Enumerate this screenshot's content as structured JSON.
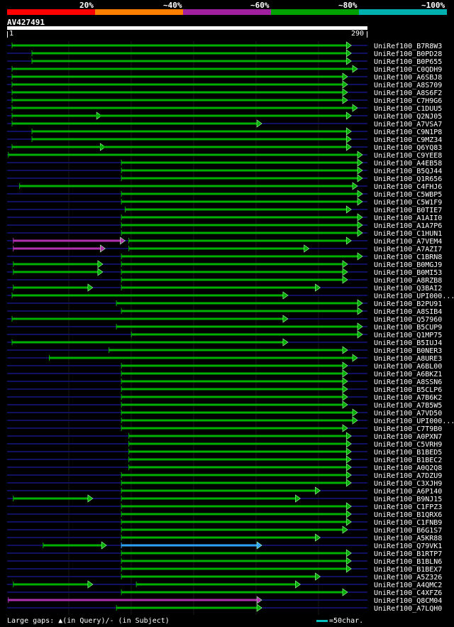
{
  "query": {
    "id": "AV427491",
    "start_label": "1",
    "end_label": "290"
  },
  "legend": {
    "labels": [
      "20%",
      "~40%",
      "~60%",
      "~80%",
      "~100%"
    ],
    "colors": [
      "#ff0000",
      "#ff7f00",
      "#a020a0",
      "#00a000",
      "#00b0b0"
    ]
  },
  "colors": {
    "hit": "#00a000",
    "hit_dark": "#006000",
    "low": "#b030b0",
    "best": "#30a0ff",
    "background_line": "#101060"
  },
  "hits": [
    {
      "name": "UniRef100_B7R8W3",
      "color": "green",
      "segs": [
        [
          4,
          277
        ]
      ]
    },
    {
      "name": "UniRef100_B0PD28",
      "color": "green",
      "segs": [
        [
          20,
          277
        ]
      ]
    },
    {
      "name": "UniRef100_B0P655",
      "color": "green",
      "segs": [
        [
          20,
          277
        ]
      ]
    },
    {
      "name": "UniRef100_C0QDH9",
      "color": "green",
      "segs": [
        [
          4,
          282
        ]
      ]
    },
    {
      "name": "UniRef100_A6SBJ8",
      "color": "green",
      "segs": [
        [
          4,
          274
        ]
      ]
    },
    {
      "name": "UniRef100_A8S709",
      "color": "green",
      "segs": [
        [
          4,
          274
        ]
      ]
    },
    {
      "name": "UniRef100_A8S6F2",
      "color": "green",
      "segs": [
        [
          4,
          274
        ]
      ]
    },
    {
      "name": "UniRef100_C7H9G6",
      "color": "green",
      "segs": [
        [
          4,
          274
        ]
      ]
    },
    {
      "name": "UniRef100_C1DUU5",
      "color": "green",
      "segs": [
        [
          4,
          282
        ]
      ]
    },
    {
      "name": "UniRef100_Q2NJ05",
      "color": "green",
      "segs": [
        [
          4,
          76
        ],
        [
          4,
          277
        ]
      ]
    },
    {
      "name": "UniRef100_A7VSA7",
      "color": "green",
      "segs": [
        [
          4,
          205
        ]
      ]
    },
    {
      "name": "UniRef100_C9N1P8",
      "color": "green",
      "segs": [
        [
          20,
          277
        ]
      ]
    },
    {
      "name": "UniRef100_C9MZ34",
      "color": "green",
      "segs": [
        [
          20,
          277
        ]
      ]
    },
    {
      "name": "UniRef100_Q6YQ83",
      "color": "green",
      "segs": [
        [
          4,
          79
        ],
        [
          4,
          277
        ]
      ]
    },
    {
      "name": "UniRef100_C9YEE8",
      "color": "green",
      "segs": [
        [
          1,
          286
        ]
      ]
    },
    {
      "name": "UniRef100_A4EB58",
      "color": "green",
      "segs": [
        [
          92,
          286
        ]
      ]
    },
    {
      "name": "UniRef100_B5QJ44",
      "color": "green",
      "segs": [
        [
          92,
          286
        ]
      ]
    },
    {
      "name": "UniRef100_Q1R656",
      "color": "green",
      "segs": [
        [
          92,
          286
        ]
      ]
    },
    {
      "name": "UniRef100_C4FHJ6",
      "color": "green",
      "segs": [
        [
          10,
          282
        ]
      ]
    },
    {
      "name": "UniRef100_C5WBP5",
      "color": "green",
      "segs": [
        [
          92,
          286
        ]
      ]
    },
    {
      "name": "UniRef100_C5W1F9",
      "color": "green",
      "segs": [
        [
          92,
          286
        ]
      ]
    },
    {
      "name": "UniRef100_B0TIE7",
      "color": "green",
      "segs": [
        [
          95,
          277
        ]
      ]
    },
    {
      "name": "UniRef100_A1AII0",
      "color": "green",
      "segs": [
        [
          92,
          286
        ]
      ]
    },
    {
      "name": "UniRef100_A1A7P6",
      "color": "green",
      "segs": [
        [
          92,
          286
        ]
      ]
    },
    {
      "name": "UniRef100_C1HUN1",
      "color": "green",
      "segs": [
        [
          92,
          286
        ]
      ]
    },
    {
      "name": "UniRef100_A7VEM4",
      "color": "mix",
      "segs": [
        [
          5,
          95
        ],
        [
          98,
          277
        ]
      ]
    },
    {
      "name": "UniRef100_A7AZI7",
      "color": "mix2",
      "segs": [
        [
          5,
          79
        ],
        [
          98,
          243
        ]
      ]
    },
    {
      "name": "UniRef100_C1BRN8",
      "color": "green",
      "segs": [
        [
          92,
          286
        ]
      ]
    },
    {
      "name": "UniRef100_B0MGJ9",
      "color": "green",
      "segs": [
        [
          5,
          77
        ],
        [
          92,
          274
        ]
      ]
    },
    {
      "name": "UniRef100_B0MI53",
      "color": "green",
      "segs": [
        [
          5,
          77
        ],
        [
          92,
          274
        ]
      ]
    },
    {
      "name": "UniRef100_A8RZB8",
      "color": "green",
      "segs": [
        [
          92,
          274
        ]
      ]
    },
    {
      "name": "UniRef100_Q3BAI2",
      "color": "green",
      "segs": [
        [
          5,
          69
        ],
        [
          92,
          252
        ]
      ]
    },
    {
      "name": "UniRef100_UPI000...",
      "color": "green",
      "segs": [
        [
          4,
          226
        ]
      ]
    },
    {
      "name": "UniRef100_B2PU91",
      "color": "green",
      "segs": [
        [
          88,
          286
        ]
      ]
    },
    {
      "name": "UniRef100_A8SIB4",
      "color": "green",
      "segs": [
        [
          92,
          286
        ]
      ]
    },
    {
      "name": "UniRef100_Q57960",
      "color": "green",
      "segs": [
        [
          4,
          226
        ]
      ]
    },
    {
      "name": "UniRef100_B5CUP9",
      "color": "green",
      "segs": [
        [
          88,
          286
        ]
      ]
    },
    {
      "name": "UniRef100_Q1MP75",
      "color": "green",
      "segs": [
        [
          100,
          286
        ]
      ]
    },
    {
      "name": "UniRef100_B5IUJ4",
      "color": "green",
      "segs": [
        [
          4,
          226
        ]
      ]
    },
    {
      "name": "UniRef100_B0NER3",
      "color": "green",
      "segs": [
        [
          82,
          274
        ]
      ]
    },
    {
      "name": "UniRef100_A8URE3",
      "color": "green",
      "segs": [
        [
          34,
          282
        ]
      ]
    },
    {
      "name": "UniRef100_A6BL00",
      "color": "green",
      "segs": [
        [
          92,
          274
        ]
      ]
    },
    {
      "name": "UniRef100_A6BKZ1",
      "color": "green",
      "segs": [
        [
          92,
          274
        ]
      ]
    },
    {
      "name": "UniRef100_A8SSN6",
      "color": "green",
      "segs": [
        [
          92,
          274
        ]
      ]
    },
    {
      "name": "UniRef100_B5CLP6",
      "color": "green",
      "segs": [
        [
          92,
          274
        ]
      ]
    },
    {
      "name": "UniRef100_A7B6K2",
      "color": "green",
      "segs": [
        [
          92,
          274
        ]
      ]
    },
    {
      "name": "UniRef100_A7B5W5",
      "color": "green",
      "segs": [
        [
          92,
          274
        ]
      ]
    },
    {
      "name": "UniRef100_A7VD50",
      "color": "green",
      "segs": [
        [
          92,
          282
        ]
      ]
    },
    {
      "name": "UniRef100_UPI000...",
      "color": "green",
      "segs": [
        [
          92,
          282
        ]
      ]
    },
    {
      "name": "UniRef100_C7T9B0",
      "color": "green",
      "segs": [
        [
          92,
          274
        ]
      ]
    },
    {
      "name": "UniRef100_A0PXN7",
      "color": "green",
      "segs": [
        [
          98,
          277
        ]
      ]
    },
    {
      "name": "UniRef100_C5VRH9",
      "color": "green",
      "segs": [
        [
          98,
          277
        ]
      ]
    },
    {
      "name": "UniRef100_B1BED5",
      "color": "green",
      "segs": [
        [
          98,
          277
        ]
      ]
    },
    {
      "name": "UniRef100_B1BEC2",
      "color": "green",
      "segs": [
        [
          98,
          277
        ]
      ]
    },
    {
      "name": "UniRef100_A0Q2Q8",
      "color": "green",
      "segs": [
        [
          98,
          277
        ]
      ]
    },
    {
      "name": "UniRef100_A7DZU9",
      "color": "green",
      "segs": [
        [
          92,
          277
        ]
      ]
    },
    {
      "name": "UniRef100_C3XJH9",
      "color": "green",
      "segs": [
        [
          92,
          277
        ]
      ]
    },
    {
      "name": "UniRef100_A6P140",
      "color": "green",
      "segs": [
        [
          92,
          252
        ]
      ]
    },
    {
      "name": "UniRef100_B9NJ15",
      "color": "green",
      "segs": [
        [
          5,
          69
        ],
        [
          92,
          236
        ]
      ]
    },
    {
      "name": "UniRef100_C1FPZ3",
      "color": "green",
      "segs": [
        [
          92,
          277
        ]
      ]
    },
    {
      "name": "UniRef100_B1QRX6",
      "color": "green",
      "segs": [
        [
          92,
          277
        ]
      ]
    },
    {
      "name": "UniRef100_C1FNB9",
      "color": "green",
      "segs": [
        [
          92,
          277
        ]
      ]
    },
    {
      "name": "UniRef100_B6G1S7",
      "color": "green",
      "segs": [
        [
          92,
          274
        ]
      ]
    },
    {
      "name": "UniRef100_A5KR88",
      "color": "green",
      "segs": [
        [
          92,
          252
        ]
      ]
    },
    {
      "name": "UniRef100_Q79VK1",
      "color": "best",
      "segs": [
        [
          29,
          80
        ],
        [
          92,
          205
        ]
      ]
    },
    {
      "name": "UniRef100_B1RTP7",
      "color": "green",
      "segs": [
        [
          92,
          277
        ]
      ]
    },
    {
      "name": "UniRef100_B1BLN6",
      "color": "green",
      "segs": [
        [
          92,
          277
        ]
      ]
    },
    {
      "name": "UniRef100_B1BEX7",
      "color": "green",
      "segs": [
        [
          92,
          277
        ]
      ]
    },
    {
      "name": "UniRef100_A5Z326",
      "color": "green",
      "segs": [
        [
          92,
          252
        ]
      ]
    },
    {
      "name": "UniRef100_A4QMC2",
      "color": "green",
      "segs": [
        [
          5,
          69
        ],
        [
          104,
          236
        ]
      ]
    },
    {
      "name": "UniRef100_C4XFZ6",
      "color": "green",
      "segs": [
        [
          92,
          274
        ]
      ]
    },
    {
      "name": "UniRef100_Q8CM04",
      "color": "low",
      "segs": [
        [
          1,
          205
        ]
      ]
    },
    {
      "name": "UniRef100_A7LQH0",
      "color": "green",
      "segs": [
        [
          88,
          205
        ]
      ]
    }
  ],
  "footer": {
    "gaps_text": "Large gaps: ▲(in Query)/- (in Subject)",
    "scale_text": "=50char."
  }
}
